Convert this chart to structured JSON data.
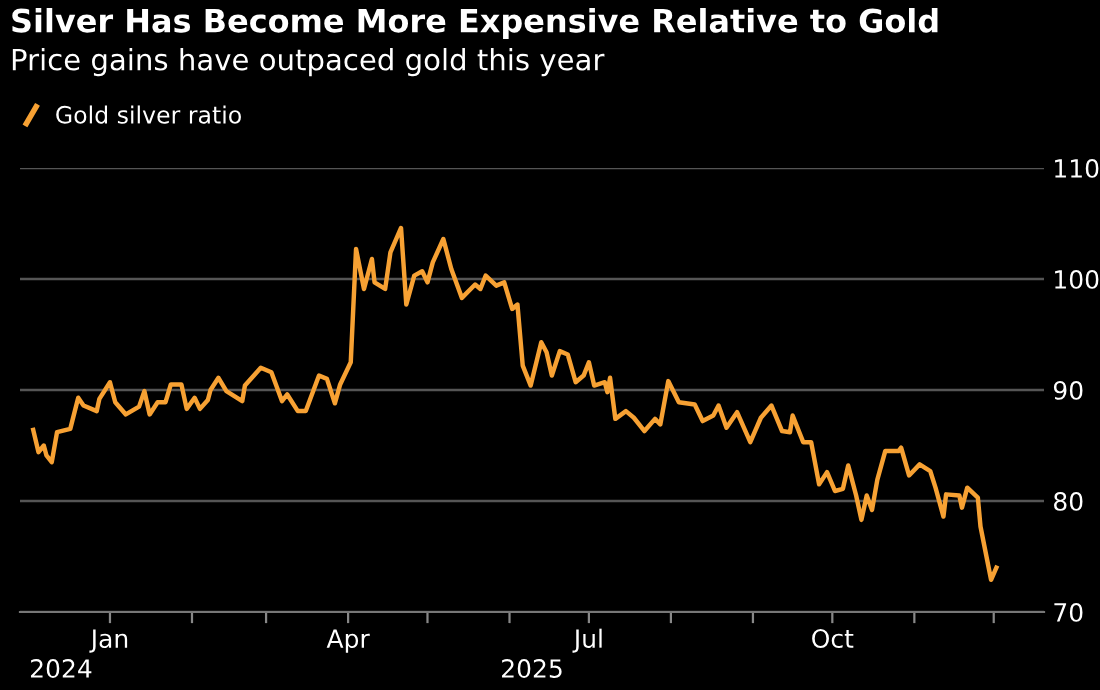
{
  "chart_data": {
    "type": "line",
    "title": "Silver Has Become More Expensive Relative to Gold",
    "subtitle": "Price gains have outpaced gold this year",
    "annotations": [
      "2024",
      "2025"
    ],
    "x": [
      "2024-12-03",
      "2024-12-05",
      "2024-12-07",
      "2024-12-08",
      "2024-12-10",
      "2024-12-12",
      "2024-12-17",
      "2024-12-20",
      "2024-12-22",
      "2024-12-27",
      "2024-12-28",
      "2025-01-01",
      "2025-01-03",
      "2025-01-07",
      "2025-01-12",
      "2025-01-14",
      "2025-01-16",
      "2025-01-19",
      "2025-01-22",
      "2025-01-24",
      "2025-01-28",
      "2025-01-30",
      "2025-02-02",
      "2025-02-04",
      "2025-02-07",
      "2025-02-08",
      "2025-02-11",
      "2025-02-14",
      "2025-02-20",
      "2025-02-21",
      "2025-02-27",
      "2025-03-03",
      "2025-03-07",
      "2025-03-09",
      "2025-03-13",
      "2025-03-16",
      "2025-03-21",
      "2025-03-24",
      "2025-03-27",
      "2025-03-29",
      "2025-04-02",
      "2025-04-04",
      "2025-04-07",
      "2025-04-10",
      "2025-04-11",
      "2025-04-15",
      "2025-04-17",
      "2025-04-21",
      "2025-04-23",
      "2025-04-26",
      "2025-04-29",
      "2025-05-01",
      "2025-05-03",
      "2025-05-07",
      "2025-05-10",
      "2025-05-14",
      "2025-05-19",
      "2025-05-21",
      "2025-05-23",
      "2025-05-27",
      "2025-05-30",
      "2025-06-02",
      "2025-06-04",
      "2025-06-06",
      "2025-06-09",
      "2025-06-13",
      "2025-06-15",
      "2025-06-17",
      "2025-06-20",
      "2025-06-23",
      "2025-06-26",
      "2025-06-29",
      "2025-07-01",
      "2025-07-03",
      "2025-07-07",
      "2025-07-08",
      "2025-07-09",
      "2025-07-11",
      "2025-07-15",
      "2025-07-18",
      "2025-07-22",
      "2025-07-26",
      "2025-07-28",
      "2025-07-31",
      "2025-08-04",
      "2025-08-10",
      "2025-08-13",
      "2025-08-17",
      "2025-08-19",
      "2025-08-22",
      "2025-08-26",
      "2025-08-31",
      "2025-09-04",
      "2025-09-08",
      "2025-09-12",
      "2025-09-15",
      "2025-09-16",
      "2025-09-20",
      "2025-09-23",
      "2025-09-26",
      "2025-09-29",
      "2025-10-02",
      "2025-10-05",
      "2025-10-07",
      "2025-10-10",
      "2025-10-12",
      "2025-10-14",
      "2025-10-16",
      "2025-10-18",
      "2025-10-21",
      "2025-10-26",
      "2025-10-27",
      "2025-10-30",
      "2025-11-03",
      "2025-11-07",
      "2025-11-09",
      "2025-11-12",
      "2025-11-13",
      "2025-11-18",
      "2025-11-19",
      "2025-11-21",
      "2025-11-25",
      "2025-11-26",
      "2025-11-29",
      "2025-11-30",
      "2025-12-02"
    ],
    "series": [
      {
        "name": "Gold silver ratio",
        "color": "#f7a133",
        "values": [
          86.4,
          84.4,
          85.0,
          84.1,
          83.5,
          86.2,
          86.5,
          89.3,
          88.6,
          88.1,
          89.2,
          90.7,
          88.9,
          87.8,
          88.5,
          89.9,
          87.8,
          88.9,
          88.9,
          90.5,
          90.5,
          88.3,
          89.3,
          88.3,
          89.1,
          90.0,
          91.1,
          89.9,
          89.0,
          90.4,
          92.0,
          91.6,
          89.0,
          89.6,
          88.1,
          88.1,
          91.3,
          91.0,
          88.8,
          90.5,
          92.5,
          102.7,
          99.1,
          101.8,
          99.7,
          99.1,
          102.4,
          104.6,
          97.7,
          100.3,
          100.7,
          99.7,
          101.5,
          103.6,
          100.9,
          98.3,
          99.5,
          99.1,
          100.3,
          99.4,
          99.7,
          97.3,
          97.7,
          92.2,
          90.4,
          94.3,
          93.4,
          91.3,
          93.5,
          93.2,
          90.7,
          91.3,
          92.5,
          90.4,
          90.7,
          89.8,
          91.1,
          87.4,
          88.1,
          87.5,
          86.3,
          87.4,
          86.9,
          90.8,
          88.9,
          88.7,
          87.2,
          87.7,
          88.6,
          86.6,
          88.0,
          85.3,
          87.5,
          88.6,
          86.3,
          86.2,
          87.7,
          85.3,
          85.3,
          81.5,
          82.6,
          80.9,
          81.1,
          83.2,
          80.5,
          78.3,
          80.5,
          79.2,
          81.9,
          84.5,
          84.5,
          84.8,
          82.3,
          83.3,
          82.7,
          81.2,
          78.6,
          80.6,
          80.5,
          79.4,
          81.2,
          80.3,
          77.7,
          74.1,
          72.9,
          74.0
        ]
      }
    ],
    "xlim": [
      "2024-11-28",
      "2025-12-20"
    ],
    "xticks": [
      {
        "value": "2025-01-01",
        "label": "Jan"
      },
      {
        "value": "2025-02-01",
        "label": null
      },
      {
        "value": "2025-03-01",
        "label": null
      },
      {
        "value": "2025-04-01",
        "label": "Apr"
      },
      {
        "value": "2025-05-01",
        "label": null
      },
      {
        "value": "2025-06-01",
        "label": null
      },
      {
        "value": "2025-07-01",
        "label": "Jul"
      },
      {
        "value": "2025-08-01",
        "label": null
      },
      {
        "value": "2025-09-01",
        "label": null
      },
      {
        "value": "2025-10-01",
        "label": "Oct"
      },
      {
        "value": "2025-11-01",
        "label": null
      },
      {
        "value": "2025-12-01",
        "label": null
      }
    ],
    "ylim": [
      70,
      110
    ],
    "yticks": [
      70,
      80,
      90,
      100,
      110
    ],
    "grid": "y",
    "legend": "top left",
    "marker": "none",
    "line_style": "solid"
  }
}
